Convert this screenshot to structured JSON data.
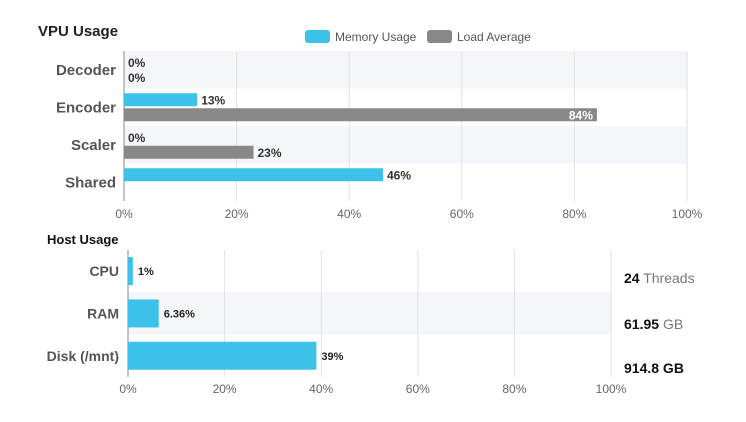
{
  "vpu": {
    "title": "VPU Usage",
    "legend": [
      {
        "label": "Memory Usage",
        "color": "#3cc1e9"
      },
      {
        "label": "Load Average",
        "color": "#888888"
      }
    ]
  },
  "host": {
    "title": "Host Usage",
    "threads": {
      "value": "24",
      "unit": "Threads"
    },
    "ram": {
      "value": "61.95",
      "unit": "GB"
    },
    "disk": {
      "value": "914.8 GB"
    }
  },
  "chart_data": [
    {
      "type": "bar",
      "orientation": "horizontal",
      "title": "VPU Usage",
      "categories": [
        "Decoder",
        "Encoder",
        "Scaler",
        "Shared"
      ],
      "series": [
        {
          "name": "Memory Usage",
          "color": "#3cc1e9",
          "values": [
            0,
            13,
            0,
            46
          ],
          "labels": [
            "0%",
            "13%",
            "0%",
            "46%"
          ]
        },
        {
          "name": "Load Average",
          "color": "#888888",
          "values": [
            0,
            84,
            23,
            null
          ],
          "labels": [
            "0%",
            "84%",
            "23%",
            ""
          ]
        }
      ],
      "xlim": [
        0,
        100
      ],
      "ticks": [
        "0%",
        "20%",
        "40%",
        "60%",
        "80%",
        "100%"
      ],
      "legend_position": "top-right",
      "banded_rows": true
    },
    {
      "type": "bar",
      "orientation": "horizontal",
      "title": "Host Usage",
      "categories": [
        "CPU",
        "RAM",
        "Disk (/mnt)"
      ],
      "series": [
        {
          "name": "Host Usage",
          "color": "#3cc1e9",
          "values": [
            1,
            6.36,
            39
          ],
          "labels": [
            "1%",
            "6.36%",
            "39%"
          ]
        }
      ],
      "xlim": [
        0,
        100
      ],
      "ticks": [
        "0%",
        "20%",
        "40%",
        "60%",
        "80%",
        "100%"
      ],
      "grid": true
    }
  ]
}
